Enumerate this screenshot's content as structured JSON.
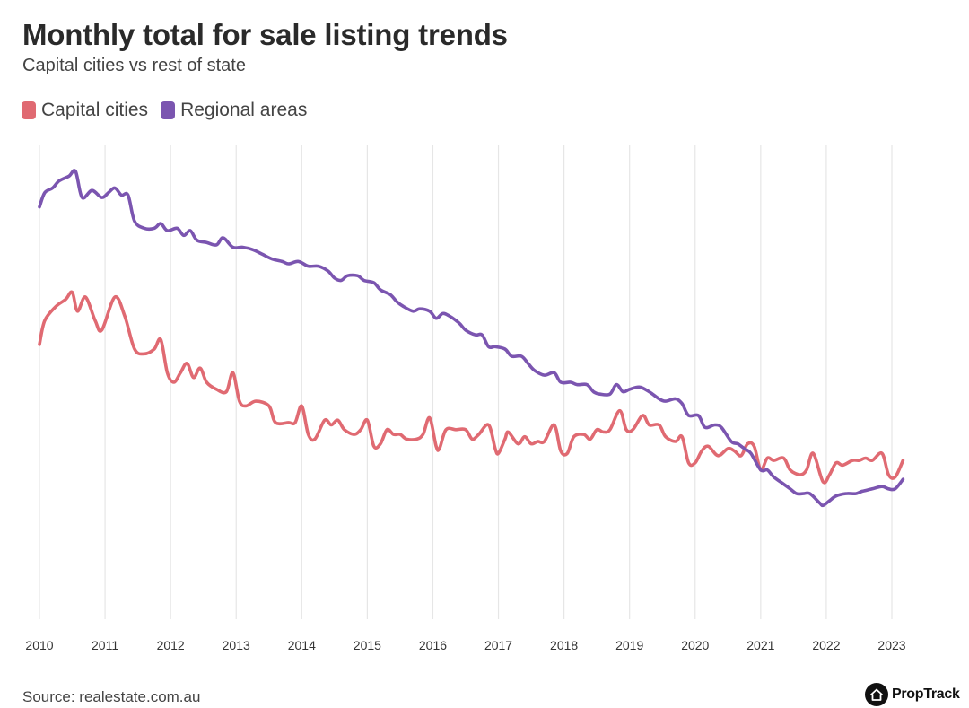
{
  "header": {
    "title": "Monthly total for sale listing trends",
    "subtitle": "Capital cities vs rest of state"
  },
  "legend": [
    {
      "label": "Capital cities",
      "color": "#e06a72"
    },
    {
      "label": "Regional areas",
      "color": "#7b55b0"
    }
  ],
  "footer": {
    "source": "Source: realestate.com.au",
    "brand": "PropTrack",
    "brand_icon": "house-icon"
  },
  "chart_data": {
    "type": "line",
    "title": "Monthly total for sale listing trends",
    "subtitle": "Capital cities vs rest of state",
    "xlabel": "",
    "ylabel": "",
    "x_ticks": [
      "2010",
      "2011",
      "2012",
      "2013",
      "2014",
      "2015",
      "2016",
      "2017",
      "2018",
      "2019",
      "2020",
      "2021",
      "2022",
      "2023"
    ],
    "x_range": [
      2010,
      2023.35
    ],
    "y_range": [
      0,
      100
    ],
    "y_axis_labels_shown": false,
    "grid": "vertical",
    "legend_position": "top-left",
    "series": [
      {
        "name": "Capital cities",
        "color": "#e06a72",
        "points": [
          [
            2010.0,
            58
          ],
          [
            2010.08,
            63
          ],
          [
            2010.25,
            66
          ],
          [
            2010.4,
            67.5
          ],
          [
            2010.5,
            69
          ],
          [
            2010.58,
            65
          ],
          [
            2010.7,
            68
          ],
          [
            2010.85,
            63
          ],
          [
            2010.95,
            61
          ],
          [
            2011.15,
            68
          ],
          [
            2011.3,
            64
          ],
          [
            2011.45,
            57
          ],
          [
            2011.6,
            56
          ],
          [
            2011.75,
            57
          ],
          [
            2011.85,
            59
          ],
          [
            2011.95,
            52
          ],
          [
            2012.05,
            50
          ],
          [
            2012.15,
            52
          ],
          [
            2012.25,
            54
          ],
          [
            2012.35,
            51
          ],
          [
            2012.45,
            53
          ],
          [
            2012.55,
            50
          ],
          [
            2012.7,
            48.5
          ],
          [
            2012.85,
            48
          ],
          [
            2012.95,
            52
          ],
          [
            2013.05,
            46
          ],
          [
            2013.15,
            45
          ],
          [
            2013.3,
            46
          ],
          [
            2013.5,
            45
          ],
          [
            2013.6,
            41.5
          ],
          [
            2013.8,
            41.5
          ],
          [
            2013.9,
            41.5
          ],
          [
            2014.0,
            45
          ],
          [
            2014.1,
            39
          ],
          [
            2014.2,
            38
          ],
          [
            2014.35,
            42
          ],
          [
            2014.45,
            41
          ],
          [
            2014.55,
            42
          ],
          [
            2014.65,
            40
          ],
          [
            2014.8,
            39
          ],
          [
            2014.9,
            40
          ],
          [
            2015.0,
            42
          ],
          [
            2015.1,
            36.5
          ],
          [
            2015.2,
            37
          ],
          [
            2015.3,
            40
          ],
          [
            2015.4,
            39
          ],
          [
            2015.5,
            39
          ],
          [
            2015.6,
            38
          ],
          [
            2015.75,
            38
          ],
          [
            2015.85,
            39
          ],
          [
            2015.95,
            42.5
          ],
          [
            2016.05,
            36.5
          ],
          [
            2016.1,
            36
          ],
          [
            2016.2,
            40
          ],
          [
            2016.35,
            40
          ],
          [
            2016.5,
            40
          ],
          [
            2016.6,
            38
          ],
          [
            2016.7,
            39
          ],
          [
            2016.85,
            41
          ],
          [
            2016.95,
            36
          ],
          [
            2017.0,
            35
          ],
          [
            2017.1,
            38
          ],
          [
            2017.15,
            39.5
          ],
          [
            2017.3,
            37
          ],
          [
            2017.4,
            38.5
          ],
          [
            2017.5,
            37
          ],
          [
            2017.6,
            37.5
          ],
          [
            2017.7,
            37.5
          ],
          [
            2017.85,
            41
          ],
          [
            2017.95,
            35.5
          ],
          [
            2018.05,
            35
          ],
          [
            2018.15,
            38.5
          ],
          [
            2018.3,
            39
          ],
          [
            2018.4,
            38
          ],
          [
            2018.5,
            40
          ],
          [
            2018.6,
            39.5
          ],
          [
            2018.7,
            40
          ],
          [
            2018.85,
            44
          ],
          [
            2018.95,
            40
          ],
          [
            2019.05,
            40
          ],
          [
            2019.2,
            43
          ],
          [
            2019.3,
            41
          ],
          [
            2019.45,
            41
          ],
          [
            2019.55,
            38.5
          ],
          [
            2019.7,
            37.5
          ],
          [
            2019.8,
            38.5
          ],
          [
            2019.9,
            33
          ],
          [
            2020.0,
            33
          ],
          [
            2020.1,
            35.5
          ],
          [
            2020.2,
            36.5
          ],
          [
            2020.35,
            34.5
          ],
          [
            2020.5,
            36
          ],
          [
            2020.6,
            35.5
          ],
          [
            2020.7,
            34.5
          ],
          [
            2020.8,
            37
          ],
          [
            2020.9,
            36.5
          ],
          [
            2021.0,
            31.5
          ],
          [
            2021.1,
            34
          ],
          [
            2021.2,
            33.5
          ],
          [
            2021.35,
            34
          ],
          [
            2021.45,
            31.5
          ],
          [
            2021.6,
            30.5
          ],
          [
            2021.7,
            31.5
          ],
          [
            2021.8,
            35
          ],
          [
            2021.95,
            29
          ],
          [
            2022.05,
            30.5
          ],
          [
            2022.15,
            33
          ],
          [
            2022.25,
            32.5
          ],
          [
            2022.4,
            33.5
          ],
          [
            2022.5,
            33.5
          ],
          [
            2022.6,
            34
          ],
          [
            2022.7,
            33.5
          ],
          [
            2022.85,
            35
          ],
          [
            2022.95,
            30.5
          ],
          [
            2023.05,
            30
          ],
          [
            2023.17,
            33.5
          ]
        ]
      },
      {
        "name": "Regional areas",
        "color": "#7b55b0",
        "points": [
          [
            2010.0,
            87
          ],
          [
            2010.08,
            90
          ],
          [
            2010.2,
            91
          ],
          [
            2010.3,
            92.5
          ],
          [
            2010.45,
            93.5
          ],
          [
            2010.55,
            94.5
          ],
          [
            2010.65,
            89
          ],
          [
            2010.8,
            90.5
          ],
          [
            2010.95,
            89
          ],
          [
            2011.05,
            90
          ],
          [
            2011.15,
            91
          ],
          [
            2011.25,
            89.5
          ],
          [
            2011.35,
            89.5
          ],
          [
            2011.45,
            84
          ],
          [
            2011.6,
            82.5
          ],
          [
            2011.75,
            82.5
          ],
          [
            2011.85,
            83.5
          ],
          [
            2011.95,
            82
          ],
          [
            2012.1,
            82.5
          ],
          [
            2012.2,
            81
          ],
          [
            2012.3,
            82
          ],
          [
            2012.4,
            80
          ],
          [
            2012.55,
            79.5
          ],
          [
            2012.7,
            79
          ],
          [
            2012.8,
            80.5
          ],
          [
            2012.95,
            78.5
          ],
          [
            2013.1,
            78.5
          ],
          [
            2013.25,
            78
          ],
          [
            2013.4,
            77
          ],
          [
            2013.55,
            76
          ],
          [
            2013.7,
            75.5
          ],
          [
            2013.8,
            75
          ],
          [
            2013.95,
            75.5
          ],
          [
            2014.1,
            74.5
          ],
          [
            2014.25,
            74.5
          ],
          [
            2014.4,
            73.5
          ],
          [
            2014.5,
            72
          ],
          [
            2014.6,
            71.5
          ],
          [
            2014.7,
            72.5
          ],
          [
            2014.85,
            72.5
          ],
          [
            2014.95,
            71.5
          ],
          [
            2015.1,
            71
          ],
          [
            2015.2,
            69.5
          ],
          [
            2015.35,
            68.5
          ],
          [
            2015.45,
            67
          ],
          [
            2015.55,
            66
          ],
          [
            2015.7,
            65
          ],
          [
            2015.8,
            65.5
          ],
          [
            2015.95,
            65
          ],
          [
            2016.05,
            63.5
          ],
          [
            2016.15,
            64.5
          ],
          [
            2016.25,
            64
          ],
          [
            2016.4,
            62.5
          ],
          [
            2016.5,
            61
          ],
          [
            2016.65,
            60
          ],
          [
            2016.75,
            60
          ],
          [
            2016.85,
            57.5
          ],
          [
            2016.95,
            57.5
          ],
          [
            2017.1,
            57
          ],
          [
            2017.2,
            55.5
          ],
          [
            2017.35,
            55.5
          ],
          [
            2017.45,
            54
          ],
          [
            2017.55,
            52.5
          ],
          [
            2017.7,
            51.5
          ],
          [
            2017.85,
            52
          ],
          [
            2017.95,
            50
          ],
          [
            2018.1,
            50
          ],
          [
            2018.2,
            49.5
          ],
          [
            2018.35,
            49.5
          ],
          [
            2018.45,
            48
          ],
          [
            2018.55,
            47.5
          ],
          [
            2018.7,
            47.5
          ],
          [
            2018.8,
            49.5
          ],
          [
            2018.9,
            48
          ],
          [
            2019.0,
            48.5
          ],
          [
            2019.15,
            49
          ],
          [
            2019.3,
            48
          ],
          [
            2019.45,
            46.5
          ],
          [
            2019.55,
            46
          ],
          [
            2019.7,
            46.5
          ],
          [
            2019.8,
            45.5
          ],
          [
            2019.9,
            43
          ],
          [
            2020.05,
            43
          ],
          [
            2020.15,
            40.5
          ],
          [
            2020.3,
            41
          ],
          [
            2020.4,
            40.5
          ],
          [
            2020.55,
            37.5
          ],
          [
            2020.65,
            37
          ],
          [
            2020.75,
            36
          ],
          [
            2020.85,
            35
          ],
          [
            2021.0,
            31.5
          ],
          [
            2021.1,
            31.5
          ],
          [
            2021.2,
            30
          ],
          [
            2021.35,
            28.5
          ],
          [
            2021.45,
            27.5
          ],
          [
            2021.55,
            26.5
          ],
          [
            2021.65,
            26.5
          ],
          [
            2021.75,
            26.5
          ],
          [
            2021.9,
            24.5
          ],
          [
            2021.95,
            24
          ],
          [
            2022.05,
            25
          ],
          [
            2022.15,
            26
          ],
          [
            2022.3,
            26.5
          ],
          [
            2022.45,
            26.5
          ],
          [
            2022.55,
            27
          ],
          [
            2022.7,
            27.5
          ],
          [
            2022.85,
            28
          ],
          [
            2022.95,
            27.5
          ],
          [
            2023.05,
            27.5
          ],
          [
            2023.17,
            29.5
          ]
        ]
      }
    ]
  }
}
